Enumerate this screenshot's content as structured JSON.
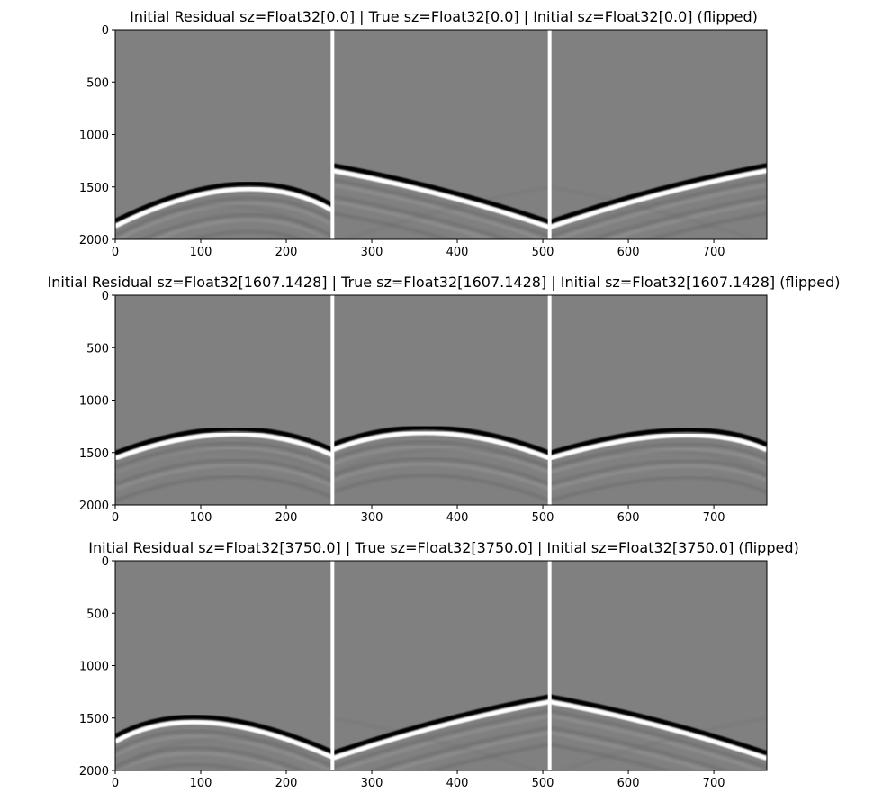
{
  "chart_data": [
    {
      "type": "heatmap",
      "title": "Initial Residual sz=Float32[0.0]   |   True sz=Float32[0.0]   |   Initial sz=Float32[0.0] (flipped)",
      "xlim": [
        0,
        762
      ],
      "ylim": [
        2000,
        0
      ],
      "x_ticks": [
        "0",
        "100",
        "200",
        "300",
        "400",
        "500",
        "600",
        "700"
      ],
      "y_ticks": [
        "0",
        "500",
        "1000",
        "1500",
        "2000"
      ],
      "separators_x": [
        254,
        508
      ],
      "colormap": "grayscale",
      "background": "#808080",
      "panels": [
        {
          "name": "Initial Residual",
          "main_arrival": {
            "x": [
              0,
              140,
              254
            ],
            "y": [
              1850,
              1500,
              1700
            ]
          }
        },
        {
          "name": "True",
          "main_arrival": {
            "x": [
              254,
              508
            ],
            "y": [
              1320,
              1860
            ]
          }
        },
        {
          "name": "Initial (flipped)",
          "main_arrival": {
            "x": [
              508,
              762
            ],
            "y": [
              1860,
              1320
            ]
          }
        }
      ]
    },
    {
      "type": "heatmap",
      "title": "Initial Residual sz=Float32[1607.1428]   |   True sz=Float32[1607.1428]   |   Initial sz=Float32[1607.1428] (flipped)",
      "xlim": [
        0,
        762
      ],
      "ylim": [
        2000,
        0
      ],
      "x_ticks": [
        "0",
        "100",
        "200",
        "300",
        "400",
        "500",
        "600",
        "700"
      ],
      "y_ticks": [
        "0",
        "500",
        "1000",
        "1500",
        "2000"
      ],
      "separators_x": [
        254,
        508
      ],
      "colormap": "grayscale",
      "background": "#808080",
      "panels": [
        {
          "name": "Initial Residual",
          "main_arrival": {
            "x": [
              0,
              135,
              254
            ],
            "y": [
              1530,
              1300,
              1500
            ]
          }
        },
        {
          "name": "True",
          "main_arrival": {
            "x": [
              254,
              375,
              508
            ],
            "y": [
              1450,
              1290,
              1530
            ]
          }
        },
        {
          "name": "Initial (flipped)",
          "main_arrival": {
            "x": [
              508,
              655,
              762
            ],
            "y": [
              1530,
              1310,
              1450
            ]
          }
        }
      ]
    },
    {
      "type": "heatmap",
      "title": "Initial Residual sz=Float32[3750.0]   |   True sz=Float32[3750.0]   |   Initial sz=Float32[3750.0] (flipped)",
      "xlim": [
        0,
        762
      ],
      "ylim": [
        2000,
        0
      ],
      "x_ticks": [
        "0",
        "100",
        "200",
        "300",
        "400",
        "500",
        "600",
        "700"
      ],
      "y_ticks": [
        "0",
        "500",
        "1000",
        "1500",
        "2000"
      ],
      "separators_x": [
        254,
        508
      ],
      "colormap": "grayscale",
      "background": "#808080",
      "panels": [
        {
          "name": "Initial Residual",
          "main_arrival": {
            "x": [
              0,
              110,
              254
            ],
            "y": [
              1700,
              1520,
              1850
            ]
          }
        },
        {
          "name": "True",
          "main_arrival": {
            "x": [
              254,
              508
            ],
            "y": [
              1860,
              1320
            ]
          }
        },
        {
          "name": "Initial (flipped)",
          "main_arrival": {
            "x": [
              508,
              762
            ],
            "y": [
              1320,
              1860
            ]
          }
        }
      ]
    }
  ]
}
